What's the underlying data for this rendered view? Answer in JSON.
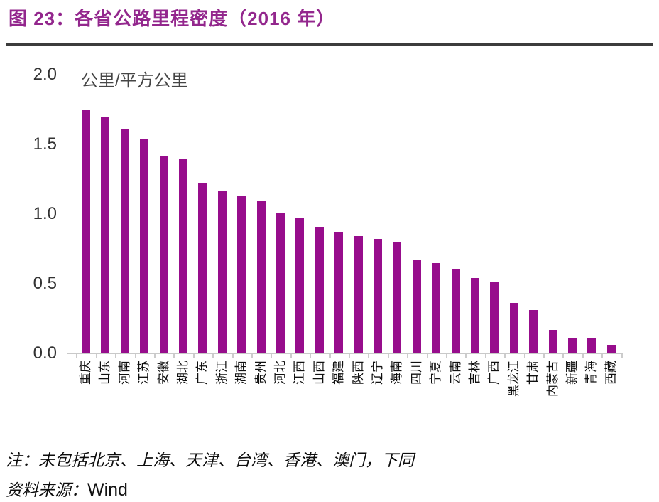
{
  "figure": {
    "title": "图 23：各省公路里程密度（2016 年）"
  },
  "chart_data": {
    "type": "bar",
    "title": "各省公路里程密度（2016 年）",
    "unit_label": "公里/平方公里",
    "categories": [
      "重庆",
      "山东",
      "河南",
      "江苏",
      "安徽",
      "湖北",
      "广东",
      "浙江",
      "湖南",
      "贵州",
      "河北",
      "江西",
      "山西",
      "福建",
      "陕西",
      "辽宁",
      "海南",
      "四川",
      "宁夏",
      "云南",
      "吉林",
      "广西",
      "黑龙江",
      "甘肃",
      "内蒙古",
      "新疆",
      "青海",
      "西藏"
    ],
    "values": [
      1.75,
      1.7,
      1.61,
      1.54,
      1.42,
      1.4,
      1.22,
      1.17,
      1.13,
      1.09,
      1.01,
      0.97,
      0.91,
      0.87,
      0.84,
      0.82,
      0.8,
      0.67,
      0.65,
      0.6,
      0.54,
      0.51,
      0.36,
      0.31,
      0.17,
      0.11,
      0.11,
      0.06
    ],
    "ylabel": "公里/平方公里",
    "ylim": [
      0.0,
      2.0
    ],
    "yticks": [
      0.0,
      0.5,
      1.0,
      1.5,
      2.0
    ],
    "grid": "off",
    "legend": "none",
    "bar_color": "#970d8c"
  },
  "footer": {
    "note": "注：未包括北京、上海、天津、台湾、香港、澳门，下同",
    "source_label": "资料来源：",
    "source_value": "Wind"
  }
}
